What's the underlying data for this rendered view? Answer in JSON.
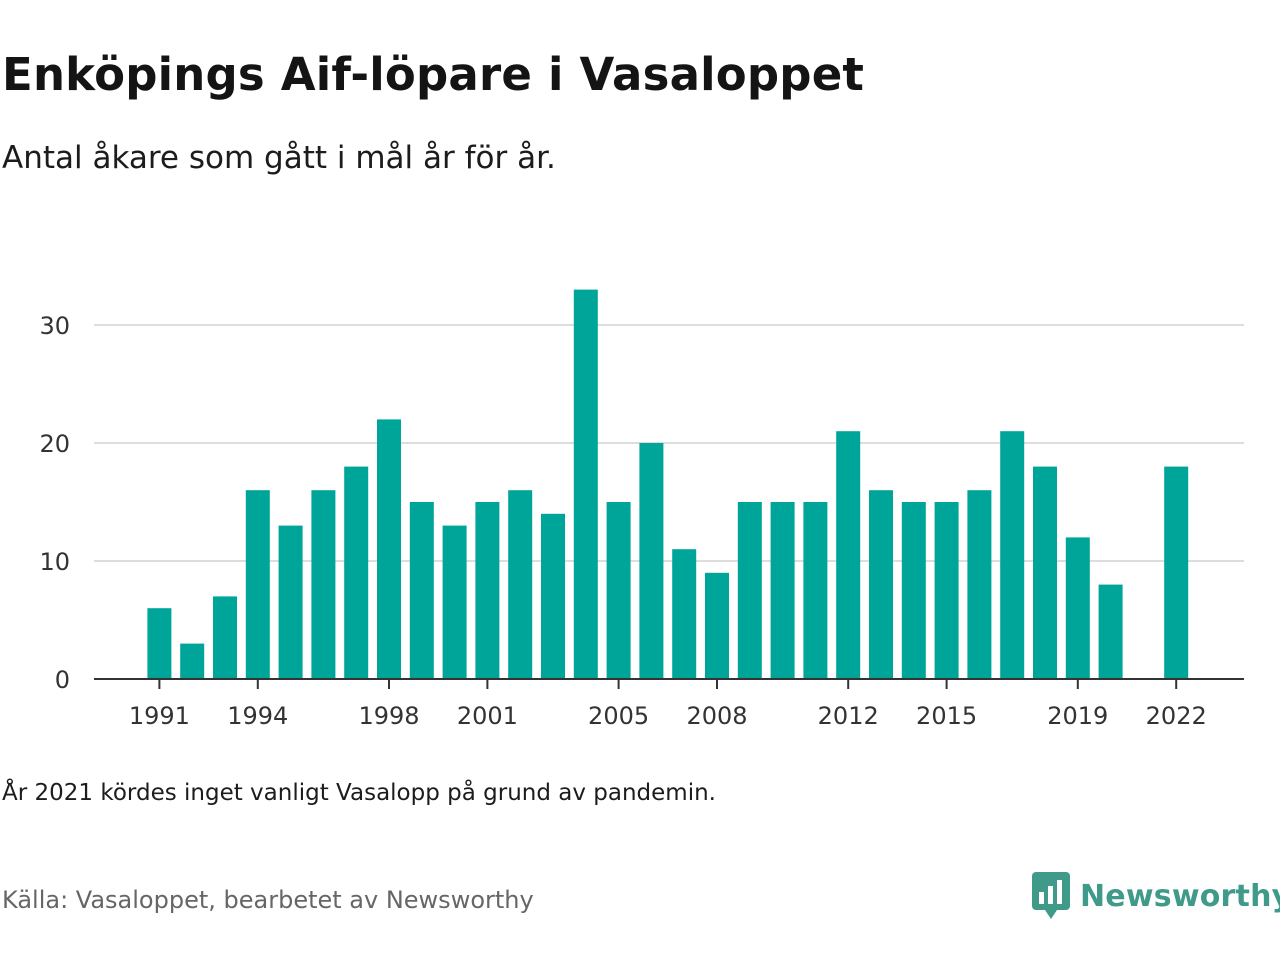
{
  "title": "Enköpings Aif-löpare i Vasaloppet",
  "subtitle": "Antal åkare som gått i mål år för år.",
  "note": "År 2021 kördes inget vanligt Vasalopp på grund av pandemin.",
  "source": "Källa: Vasaloppet, bearbetet av Newsworthy",
  "brand": {
    "name": "Newsworthy",
    "icon": "newsworthy-logo-icon",
    "color": "#3f9a8a"
  },
  "chart_data": {
    "type": "bar",
    "categories": [
      "1991",
      "1992",
      "1993",
      "1994",
      "1995",
      "1996",
      "1997",
      "1998",
      "1999",
      "2000",
      "2001",
      "2002",
      "2003",
      "2004",
      "2005",
      "2006",
      "2007",
      "2008",
      "2009",
      "2010",
      "2011",
      "2012",
      "2013",
      "2014",
      "2015",
      "2016",
      "2017",
      "2018",
      "2019",
      "2020",
      "2021",
      "2022"
    ],
    "values": [
      6,
      3,
      7,
      16,
      13,
      16,
      18,
      22,
      15,
      13,
      15,
      16,
      14,
      33,
      15,
      20,
      11,
      9,
      15,
      15,
      15,
      21,
      16,
      15,
      15,
      16,
      21,
      18,
      12,
      8,
      null,
      18
    ],
    "xtick_labels": [
      "1991",
      "1994",
      "1998",
      "2001",
      "2005",
      "2008",
      "2012",
      "2015",
      "2019",
      "2022"
    ],
    "yticks": [
      0,
      10,
      20,
      30
    ],
    "ylim": [
      0,
      35
    ],
    "grid": true,
    "bar_color": "#00a59a",
    "grid_color": "#dddddd",
    "axis_color": "#333333"
  }
}
